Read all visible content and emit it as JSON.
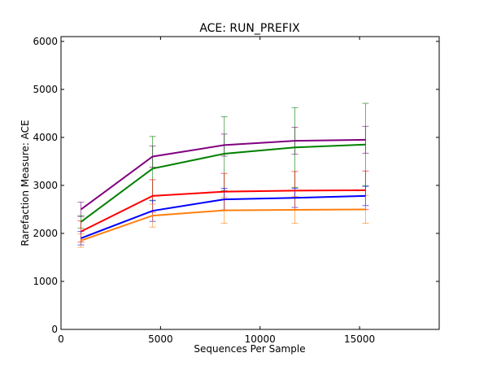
{
  "chart_data": {
    "type": "line",
    "title": "ACE: RUN_PREFIX",
    "xlabel": "Sequences Per Sample",
    "ylabel": "Rarefaction Measure: ACE",
    "xlim": [
      0,
      19000
    ],
    "ylim": [
      0,
      6100
    ],
    "xticks": [
      0,
      5000,
      10000,
      15000
    ],
    "yticks": [
      0,
      1000,
      2000,
      3000,
      4000,
      5000,
      6000
    ],
    "xtick_labels": [
      "0",
      "5000",
      "10000",
      "15000"
    ],
    "ytick_labels": [
      "0",
      "1000",
      "2000",
      "3000",
      "4000",
      "5000",
      "6000"
    ],
    "grid": false,
    "x": [
      1000,
      4600,
      8200,
      11750,
      15300
    ],
    "series": [
      {
        "color": "#800080",
        "values": [
          2500,
          3600,
          3840,
          3930,
          3950
        ],
        "error": [
          150,
          220,
          230,
          280,
          280
        ]
      },
      {
        "color": "#008000",
        "values": [
          2240,
          3350,
          3660,
          3790,
          3850
        ],
        "error": [
          130,
          670,
          770,
          830,
          860
        ]
      },
      {
        "color": "#ff0000",
        "values": [
          2040,
          2780,
          2870,
          2890,
          2900
        ],
        "error": [
          220,
          340,
          380,
          400,
          400
        ]
      },
      {
        "color": "#0000ff",
        "values": [
          1900,
          2470,
          2710,
          2740,
          2780
        ],
        "error": [
          140,
          220,
          230,
          200,
          200
        ]
      },
      {
        "color": "#ff7f0e",
        "values": [
          1850,
          2370,
          2480,
          2490,
          2500
        ],
        "error": [
          140,
          240,
          270,
          280,
          290
        ]
      }
    ]
  }
}
